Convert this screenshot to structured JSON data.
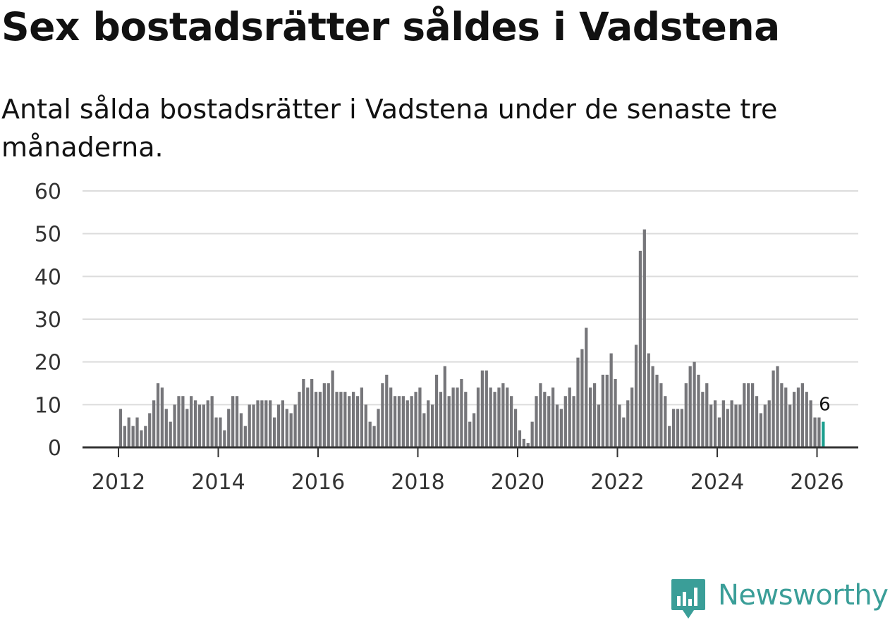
{
  "title": "Sex bostadsrätter såldes i Vadstena",
  "subtitle": "Antal sålda bostadsrätter i Vadstena under de senaste tre månaderna.",
  "brand": {
    "name": "Newsworthy",
    "icon": "newsworthy-logo-icon",
    "color": "#3a9e98"
  },
  "chart_data": {
    "type": "bar",
    "title": "Sex bostadsrätter såldes i Vadstena",
    "xlabel": "",
    "ylabel": "",
    "ylim": [
      0,
      60
    ],
    "yticks": [
      0,
      10,
      20,
      30,
      40,
      50,
      60
    ],
    "xticks": [
      2012,
      2014,
      2016,
      2018,
      2020,
      2022,
      2024,
      2026
    ],
    "grid": true,
    "bar_color": "#76767a",
    "highlight_color": "#1a9e8e",
    "highlight_label": "6",
    "start": "2012-01",
    "series": [
      {
        "name": "Antal sålda bostadsrätter",
        "values": [
          9,
          5,
          7,
          5,
          7,
          4,
          5,
          8,
          11,
          15,
          14,
          9,
          6,
          10,
          12,
          12,
          9,
          12,
          11,
          10,
          10,
          11,
          12,
          7,
          7,
          4,
          9,
          12,
          12,
          8,
          5,
          10,
          10,
          11,
          11,
          11,
          11,
          7,
          10,
          11,
          9,
          8,
          10,
          13,
          16,
          14,
          16,
          13,
          13,
          15,
          15,
          18,
          13,
          13,
          13,
          12,
          13,
          12,
          14,
          10,
          6,
          5,
          9,
          15,
          17,
          14,
          12,
          12,
          12,
          11,
          12,
          13,
          14,
          8,
          11,
          10,
          17,
          13,
          19,
          12,
          14,
          14,
          16,
          13,
          6,
          8,
          14,
          18,
          18,
          14,
          13,
          14,
          15,
          14,
          12,
          9,
          4,
          2,
          1,
          6,
          12,
          15,
          13,
          12,
          14,
          10,
          9,
          12,
          14,
          12,
          21,
          23,
          28,
          14,
          15,
          10,
          17,
          17,
          22,
          16,
          10,
          7,
          11,
          14,
          24,
          46,
          51,
          22,
          19,
          17,
          15,
          12,
          5,
          9,
          9,
          9,
          15,
          19,
          20,
          17,
          13,
          15,
          10,
          11,
          7,
          11,
          9,
          11,
          10,
          10,
          15,
          15,
          15,
          12,
          8,
          10,
          11,
          18,
          19,
          15,
          14,
          10,
          13,
          14,
          15,
          13,
          11,
          7,
          7,
          6
        ]
      }
    ]
  }
}
